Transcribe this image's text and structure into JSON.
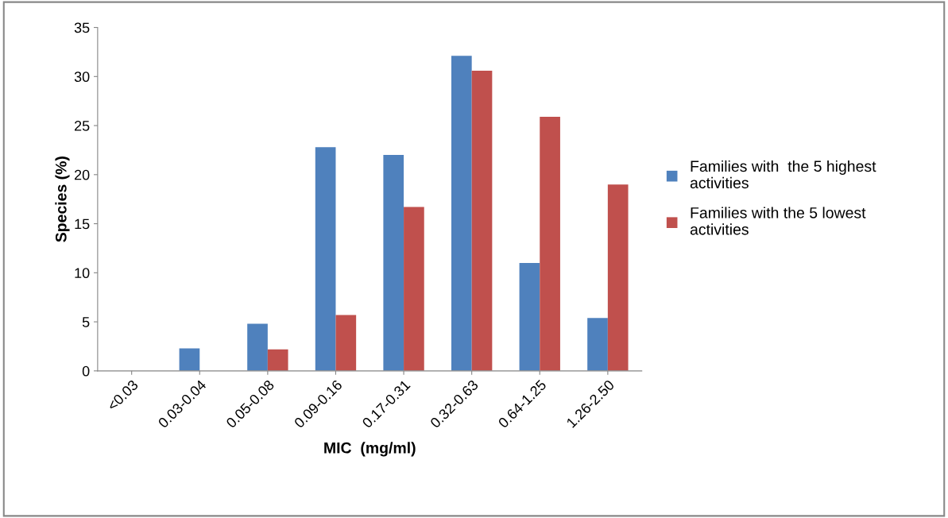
{
  "chart_data": {
    "type": "bar",
    "xlabel": "MIC  (mg/ml)",
    "ylabel": "Species (%)",
    "categories": [
      "<0.03",
      "0.03-0.04",
      "0.05-0.08",
      "0.09-0.16",
      "0.17-0.31",
      "0.32-0.63",
      "0.64-1.25",
      "1.26-2.50"
    ],
    "series": [
      {
        "name": "Families with  the 5 highest\nactivities",
        "color": "#4f81bd",
        "values": [
          0,
          2.3,
          4.8,
          22.8,
          22.0,
          32.1,
          11.0,
          5.4
        ]
      },
      {
        "name": "Families with the 5 lowest\nactivities",
        "color": "#c0504d",
        "values": [
          0,
          0,
          2.2,
          5.7,
          16.7,
          30.6,
          25.9,
          19.0
        ]
      }
    ],
    "ylim": [
      0,
      35
    ],
    "yticks": [
      0,
      5,
      10,
      15,
      20,
      25,
      30,
      35
    ],
    "grid": false,
    "legend": "right"
  }
}
